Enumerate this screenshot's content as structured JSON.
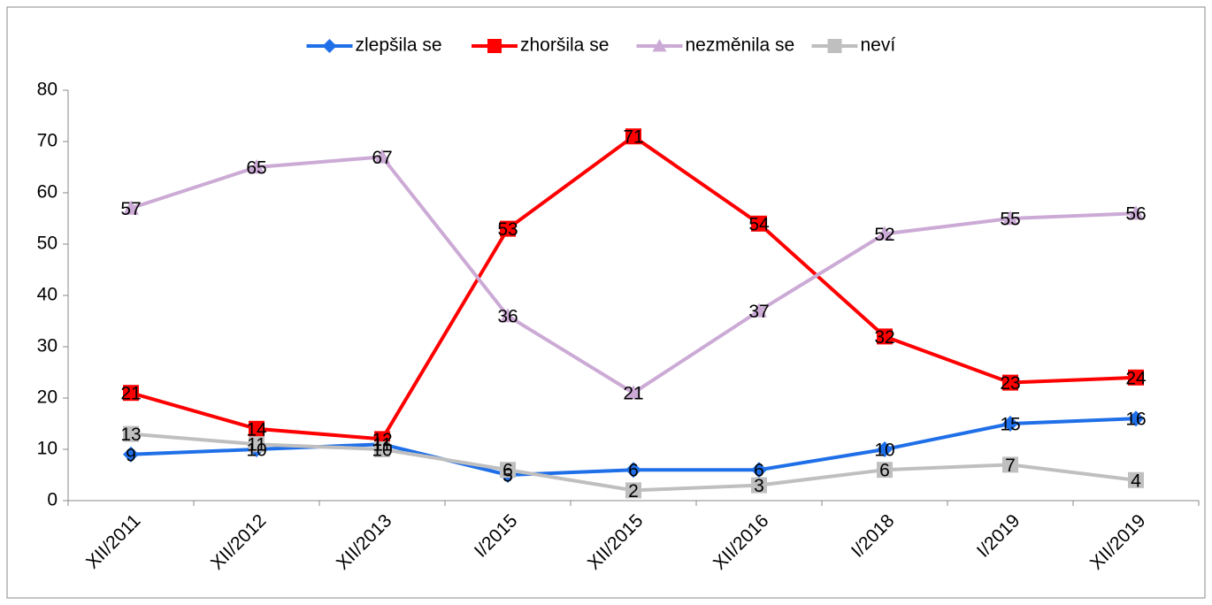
{
  "chart_data": {
    "type": "line",
    "categories": [
      "XII/2011",
      "XII/2012",
      "XII/2013",
      "I/2015",
      "XII/2015",
      "XII/2016",
      "I/2018",
      "I/2019",
      "XII/2019"
    ],
    "series": [
      {
        "name": "zlepšila se",
        "color": "#1f6fe8",
        "marker": "diamond",
        "values": [
          9,
          10,
          11,
          5,
          6,
          6,
          10,
          15,
          16
        ]
      },
      {
        "name": "zhoršila se",
        "color": "#ff0000",
        "marker": "square",
        "values": [
          21,
          14,
          12,
          53,
          71,
          54,
          32,
          23,
          24
        ]
      },
      {
        "name": "nezměnila se",
        "color": "#ccaad6",
        "marker": "triangle",
        "values": [
          57,
          65,
          67,
          36,
          21,
          37,
          52,
          55,
          56
        ]
      },
      {
        "name": "neví",
        "color": "#bfbfbf",
        "marker": "square",
        "values": [
          13,
          11,
          10,
          6,
          2,
          3,
          6,
          7,
          4
        ]
      }
    ],
    "ylim": [
      0,
      80
    ],
    "yticks": [
      0,
      10,
      20,
      30,
      40,
      50,
      60,
      70,
      80
    ],
    "grid": false,
    "legend": "top"
  }
}
